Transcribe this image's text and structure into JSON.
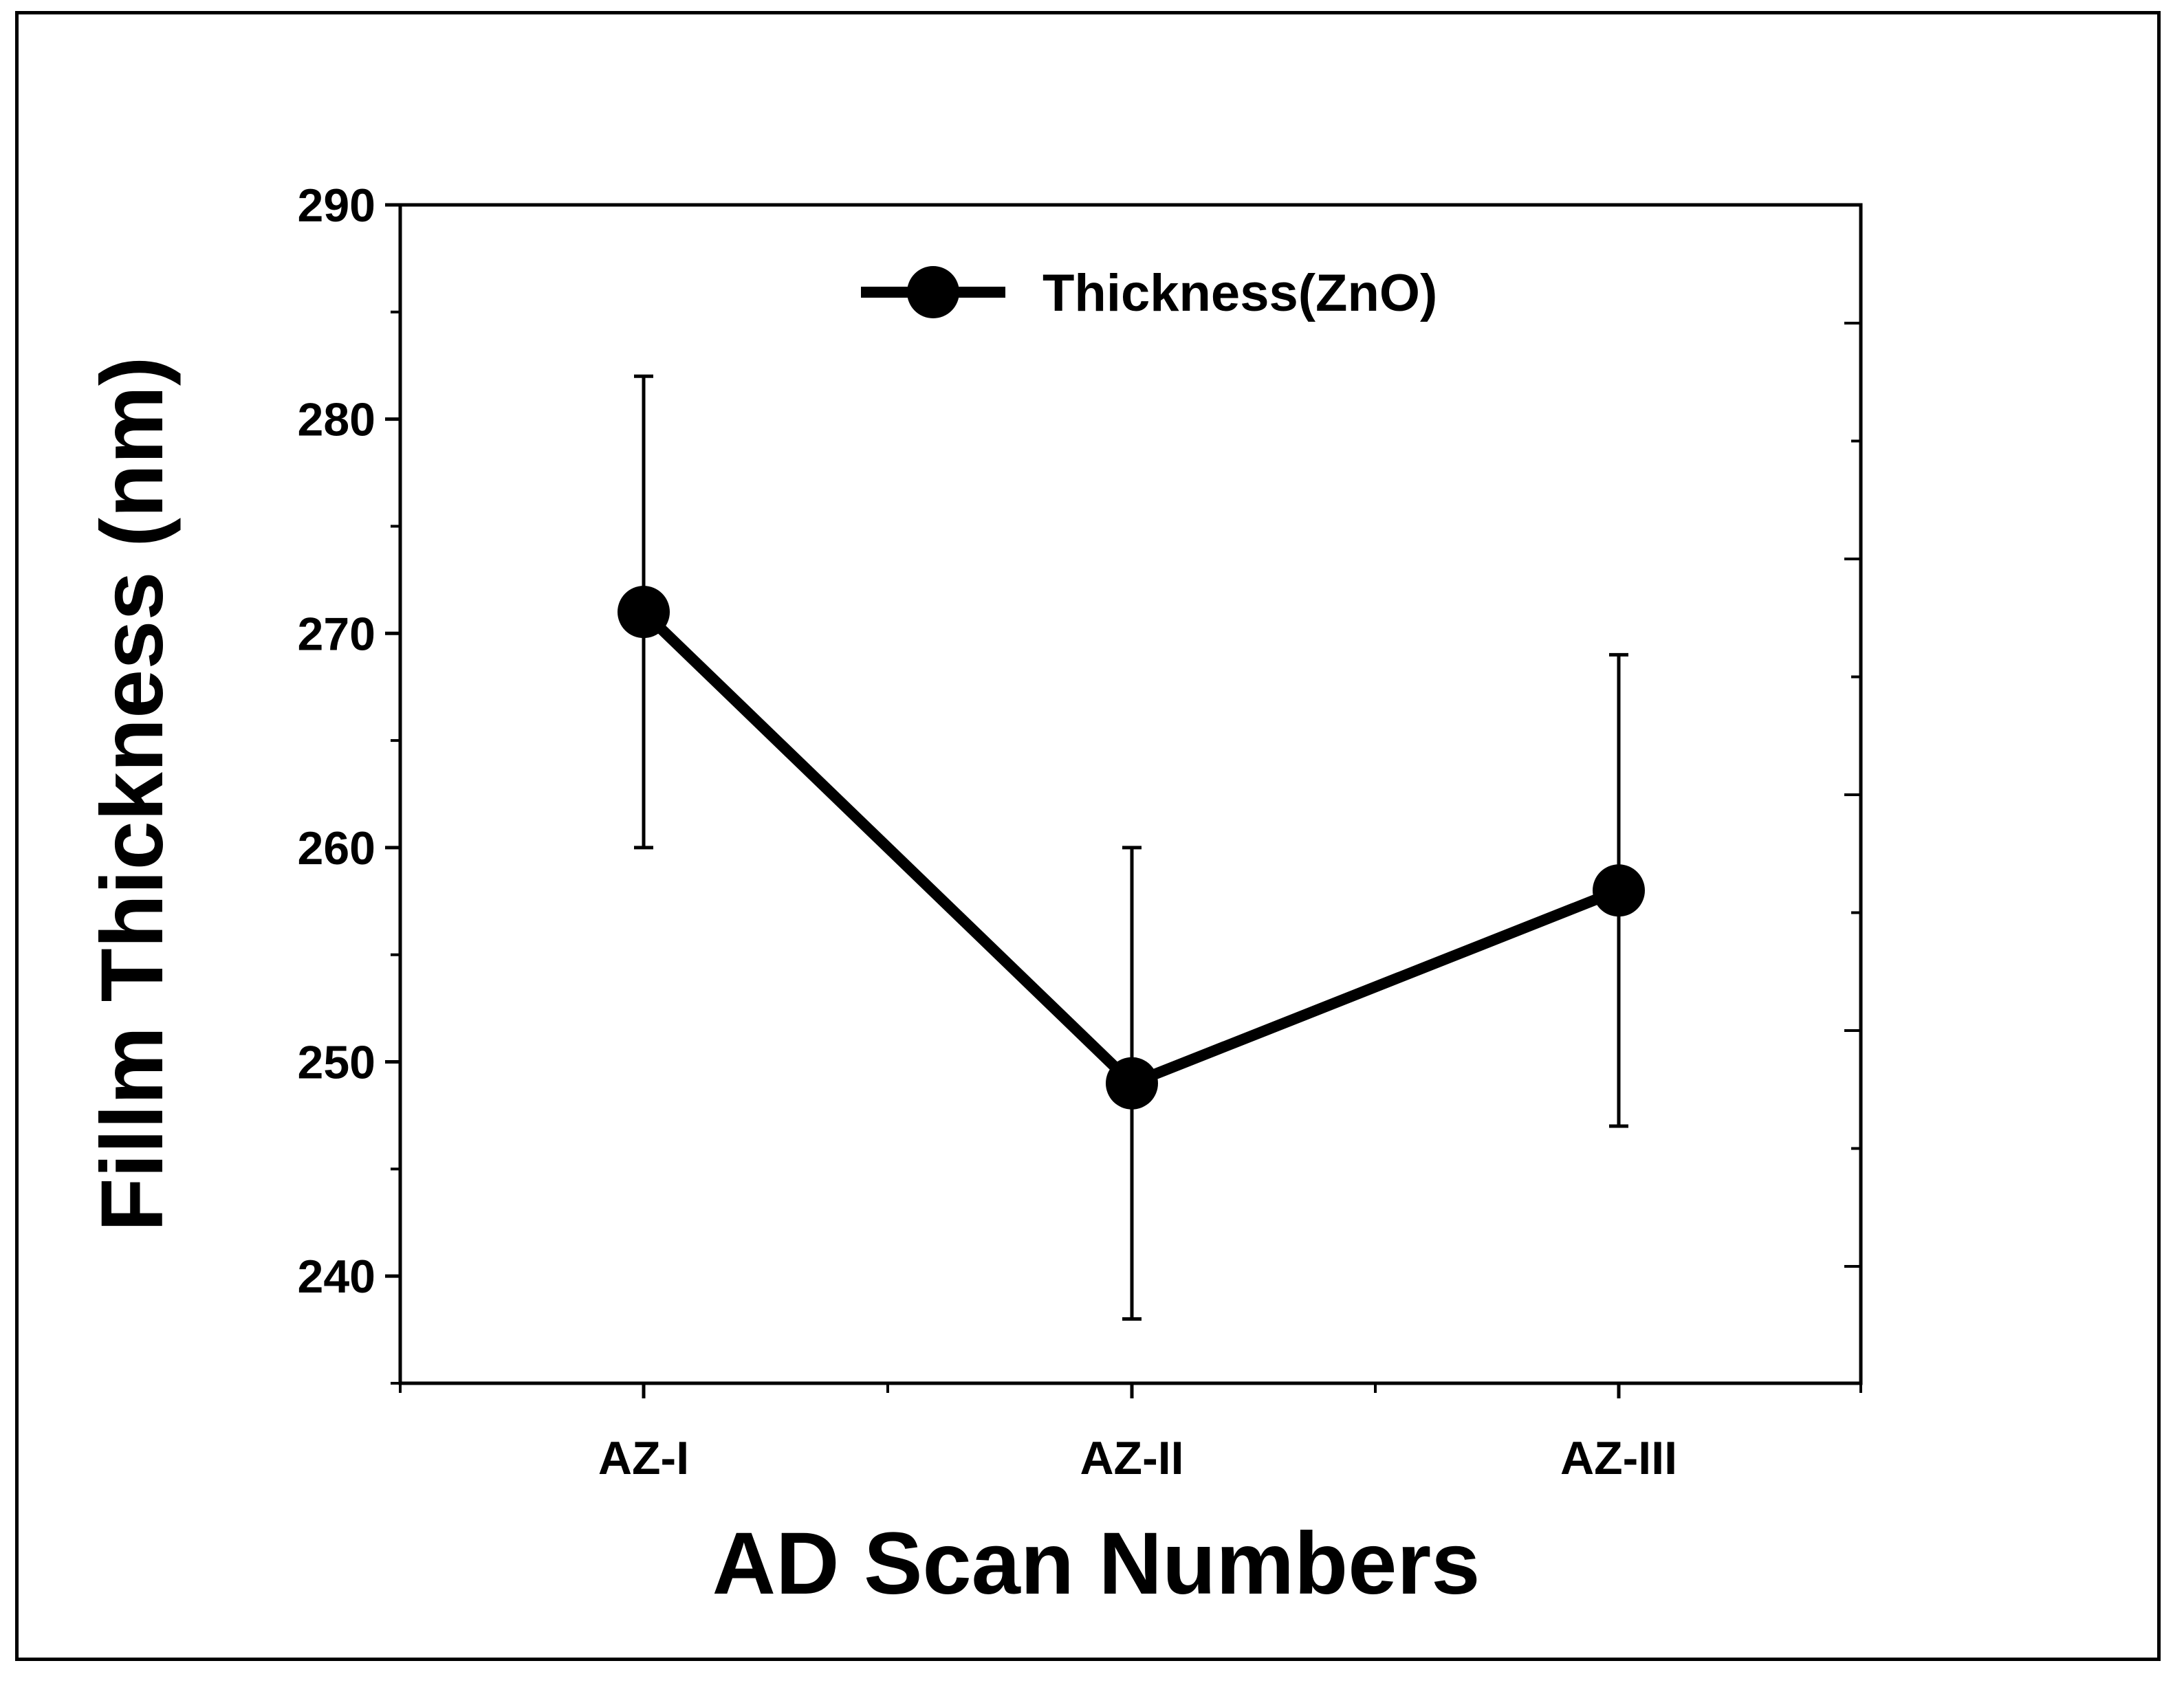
{
  "chart_data": {
    "type": "line",
    "title": "",
    "xlabel": "AD Scan Numbers",
    "ylabel": "Fillm Thickness (nm)",
    "categories": [
      "AZ-I",
      "AZ-II",
      "AZ-III"
    ],
    "series": [
      {
        "name": "Thickness(ZnO)",
        "values": [
          271,
          249,
          258
        ],
        "error_low": [
          260,
          238,
          247
        ],
        "error_high": [
          282,
          260,
          269
        ]
      }
    ],
    "ylim": [
      235,
      290
    ],
    "yticks": [
      240,
      250,
      260,
      270,
      280,
      290
    ],
    "right_axis_minor_ticks": true,
    "grid": false,
    "legend_position": "top-center",
    "line_color": "#000000",
    "marker": "filled-circle"
  }
}
